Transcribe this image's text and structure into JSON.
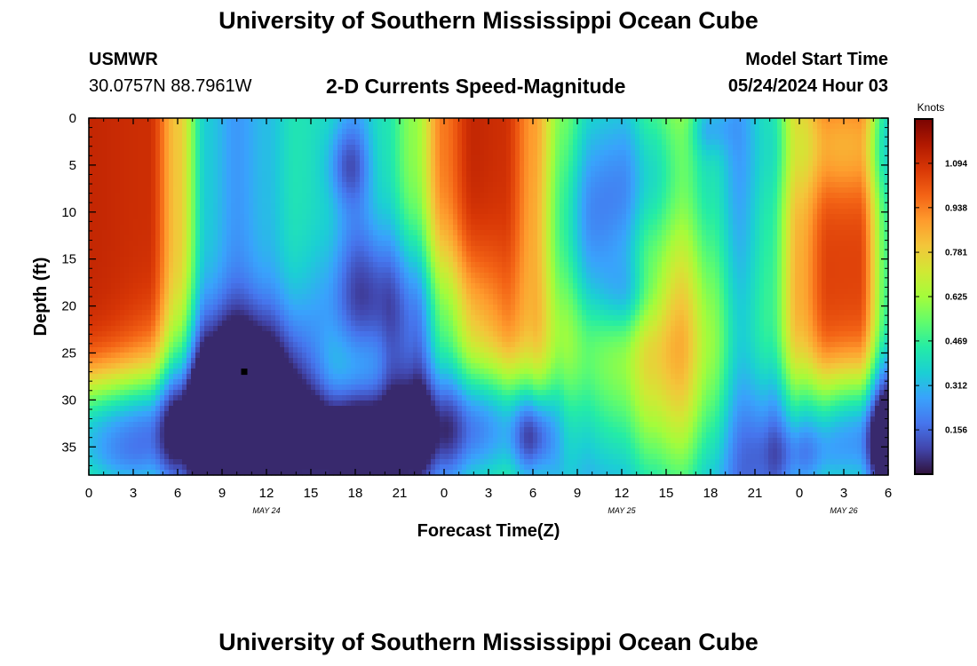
{
  "header": {
    "title": "University of Southern Mississippi Ocean Cube",
    "station": "USMWR",
    "coords": "30.0757N  88.7961W",
    "subtitle": "2-D Currents Speed-Magnitude",
    "model_start_label": "Model Start Time",
    "model_start_value": "05/24/2024 Hour 03"
  },
  "footer": {
    "title": "University of Southern Mississippi Ocean Cube"
  },
  "colors": {
    "colormap": [
      "#30123b",
      "#4145ab",
      "#4675ed",
      "#39a2fc",
      "#1bcfd4",
      "#24eca6",
      "#61fc6c",
      "#a4fc3b",
      "#d1e834",
      "#f3c63a",
      "#fe9b2d",
      "#f36315",
      "#d93806",
      "#b11901",
      "#7a0402"
    ],
    "marker": "#000000"
  },
  "chart_data": {
    "type": "heatmap",
    "xlabel": "Forecast Time(Z)",
    "ylabel": "Depth (ft)",
    "xticks": [
      "0",
      "3",
      "6",
      "9",
      "12",
      "15",
      "18",
      "21",
      "0",
      "3",
      "6",
      "9",
      "12",
      "15",
      "18",
      "21",
      "0",
      "3",
      "6"
    ],
    "date_labels": [
      {
        "text": "MAY 24",
        "tick": 4
      },
      {
        "text": "MAY 25",
        "tick": 12
      },
      {
        "text": "MAY 26",
        "tick": 17
      }
    ],
    "x_range_hours": [
      0,
      54
    ],
    "yticks": [
      0,
      5,
      10,
      15,
      20,
      25,
      30,
      35
    ],
    "ylim": [
      0,
      38
    ],
    "colorbar": {
      "label": "Knots",
      "ticks": [
        "0.156",
        "0.312",
        "0.469",
        "0.625",
        "0.781",
        "0.938",
        "1.094"
      ],
      "range": [
        0,
        1.25
      ]
    },
    "field": {
      "base": [
        [
          0,
          1.12
        ],
        [
          4,
          1.1
        ],
        [
          6,
          0.8
        ],
        [
          8,
          0.35
        ],
        [
          10,
          0.25
        ],
        [
          12,
          0.32
        ],
        [
          14,
          0.42
        ],
        [
          16,
          0.4
        ],
        [
          18,
          0.3
        ],
        [
          20,
          0.42
        ],
        [
          22,
          0.6
        ],
        [
          24,
          0.95
        ],
        [
          26,
          1.12
        ],
        [
          28,
          1.1
        ],
        [
          30,
          0.9
        ],
        [
          32,
          0.6
        ],
        [
          34,
          0.45
        ],
        [
          36,
          0.45
        ],
        [
          38,
          0.6
        ],
        [
          40,
          0.7
        ],
        [
          42,
          0.5
        ],
        [
          44,
          0.3
        ],
        [
          46,
          0.45
        ],
        [
          48,
          0.85
        ],
        [
          50,
          1.05
        ],
        [
          52,
          1.05
        ],
        [
          54,
          0.5
        ]
      ],
      "blobs": [
        {
          "t": 10,
          "d": 26,
          "sx": 4,
          "sd": 5,
          "a": -0.3
        },
        {
          "t": 4,
          "d": 33,
          "sx": 7,
          "sd": 4.5,
          "a": -0.7
        },
        {
          "t": 12,
          "d": 31,
          "sx": 3,
          "sd": 5,
          "a": -0.1
        },
        {
          "t": 2.5,
          "d": 37,
          "sx": 2,
          "sd": 2,
          "a": -0.1
        },
        {
          "t": 17.5,
          "d": 5,
          "sx": 1,
          "sd": 3,
          "a": -0.2
        },
        {
          "t": 18,
          "d": 27,
          "sx": 1.8,
          "sd": 4,
          "a": 0.28
        },
        {
          "t": 17,
          "d": 34,
          "sx": 3,
          "sd": 3,
          "a": -0.2
        },
        {
          "t": 20,
          "d": 17,
          "sx": 2.5,
          "sd": 5,
          "a": -0.1
        },
        {
          "t": 22,
          "d": 22,
          "sx": 4,
          "sd": 6,
          "a": -0.3
        },
        {
          "t": 26,
          "d": 22,
          "sx": 3,
          "sd": 6,
          "a": -0.1
        },
        {
          "t": 25,
          "d": 33,
          "sx": 4,
          "sd": 5,
          "a": -0.7
        },
        {
          "t": 30,
          "d": 34,
          "sx": 1,
          "sd": 3,
          "a": -0.3
        },
        {
          "t": 29,
          "d": 30,
          "sx": 2.5,
          "sd": 4,
          "a": -0.1
        },
        {
          "t": 36.5,
          "d": 19,
          "sx": 1.5,
          "sd": 3,
          "a": -0.18
        },
        {
          "t": 34,
          "d": 13,
          "sx": 2,
          "sd": 7,
          "a": -0.2
        },
        {
          "t": 37,
          "d": 25,
          "sx": 5,
          "sd": 7,
          "a": 0.2
        },
        {
          "t": 38,
          "d": 6,
          "sx": 3,
          "sd": 6,
          "a": -0.2
        },
        {
          "t": 42,
          "d": 1,
          "sx": 1,
          "sd": 2,
          "a": -0.15
        },
        {
          "t": 51,
          "d": 3,
          "sx": 3,
          "sd": 4,
          "a": -0.2
        },
        {
          "t": 52,
          "d": 33,
          "sx": 4,
          "sd": 5,
          "a": -0.6
        },
        {
          "t": 48,
          "d": 36,
          "sx": 2,
          "sd": 2.5,
          "a": -0.15
        },
        {
          "t": 54,
          "d": 35,
          "sx": 1,
          "sd": 3,
          "a": -0.2
        }
      ],
      "marker": {
        "t": 10.5,
        "d": 27
      }
    }
  }
}
